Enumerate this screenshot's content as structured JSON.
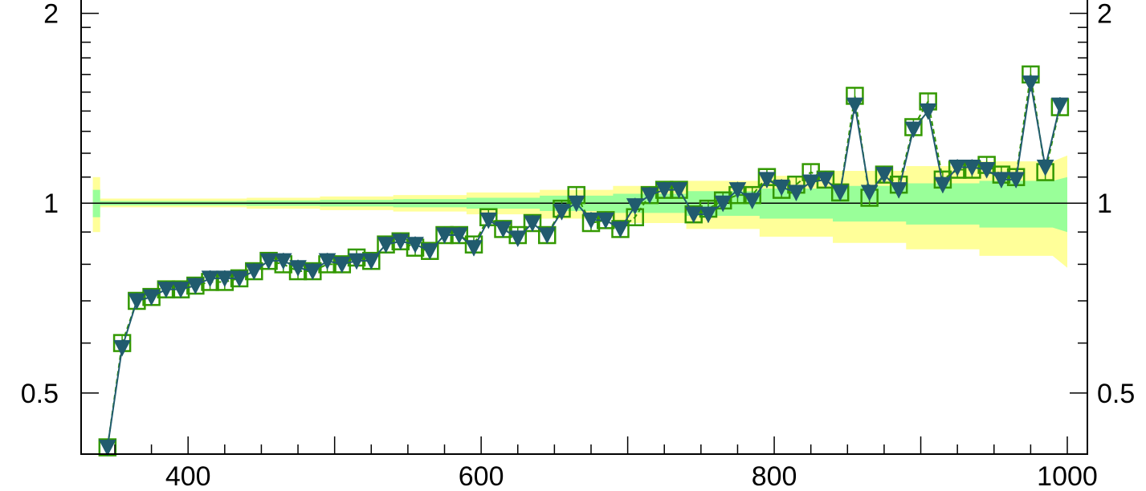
{
  "chart_data": {
    "type": "line",
    "title": "",
    "xlabel": "",
    "ylabel": "",
    "log_y": true,
    "grid": false,
    "legend": "none",
    "xlim": [
      327,
      1000
    ],
    "ylim": [
      0.4,
      2.1
    ],
    "x_ticks": [
      {
        "value": 400,
        "label": "400"
      },
      {
        "value": 600,
        "label": "600"
      },
      {
        "value": 800,
        "label": "800"
      },
      {
        "value": 1000,
        "label": "1000"
      }
    ],
    "y_ticks": [
      {
        "value": 0.5,
        "label": "0.5"
      },
      {
        "value": 1,
        "label": "1"
      },
      {
        "value": 2,
        "label": "2"
      }
    ],
    "reference_line": 1,
    "colors": {
      "band_outer": "#ffff99",
      "band_inner": "#99ff99",
      "square_series": "#339900",
      "triangle_series": "#215b6e",
      "reference": "#000000"
    },
    "band_x_edges": [
      345,
      350,
      400,
      450,
      500,
      550,
      600,
      650,
      700,
      750,
      800,
      850,
      900,
      950,
      1000
    ],
    "band_outer": {
      "lower": [
        0.9,
        0.985,
        0.985,
        0.98,
        0.975,
        0.97,
        0.96,
        0.945,
        0.93,
        0.91,
        0.885,
        0.865,
        0.845,
        0.825,
        0.79
      ],
      "upper": [
        1.1,
        1.017,
        1.017,
        1.02,
        1.025,
        1.03,
        1.04,
        1.05,
        1.065,
        1.085,
        1.105,
        1.125,
        1.145,
        1.165,
        1.19
      ]
    },
    "band_inner": {
      "lower": [
        0.95,
        0.992,
        0.992,
        0.99,
        0.988,
        0.985,
        0.98,
        0.972,
        0.965,
        0.955,
        0.945,
        0.935,
        0.925,
        0.915,
        0.9
      ],
      "upper": [
        1.05,
        1.008,
        1.008,
        1.01,
        1.012,
        1.015,
        1.02,
        1.028,
        1.035,
        1.045,
        1.055,
        1.065,
        1.075,
        1.085,
        1.1
      ]
    },
    "series": [
      {
        "marker": "open-square",
        "x": [
          345,
          355,
          365,
          375,
          385,
          395,
          405,
          415,
          425,
          435,
          445,
          455,
          465,
          475,
          485,
          495,
          505,
          515,
          525,
          535,
          545,
          555,
          565,
          575,
          585,
          595,
          605,
          615,
          625,
          635,
          645,
          655,
          665,
          675,
          685,
          695,
          705,
          715,
          725,
          735,
          745,
          755,
          765,
          775,
          785,
          795,
          805,
          815,
          825,
          835,
          845,
          855,
          865,
          875,
          885,
          895,
          905,
          915,
          925,
          935,
          945,
          955,
          965,
          975,
          985,
          995
        ],
        "y": [
          0.41,
          0.6,
          0.7,
          0.71,
          0.73,
          0.73,
          0.74,
          0.75,
          0.75,
          0.76,
          0.78,
          0.81,
          0.8,
          0.78,
          0.78,
          0.8,
          0.8,
          0.82,
          0.81,
          0.86,
          0.87,
          0.85,
          0.84,
          0.89,
          0.89,
          0.86,
          0.95,
          0.91,
          0.89,
          0.93,
          0.89,
          0.98,
          1.03,
          0.93,
          0.94,
          0.91,
          0.95,
          1.03,
          1.05,
          1.05,
          0.96,
          0.98,
          1.01,
          1.03,
          1.03,
          1.1,
          1.05,
          1.07,
          1.12,
          1.09,
          1.04,
          1.48,
          1.02,
          1.11,
          1.07,
          1.32,
          1.45,
          1.09,
          1.13,
          1.13,
          1.15,
          1.11,
          1.1,
          1.6,
          1.12,
          1.42
        ]
      },
      {
        "marker": "filled-triangle-down",
        "x": [
          345,
          355,
          365,
          375,
          385,
          395,
          405,
          415,
          425,
          435,
          445,
          455,
          465,
          475,
          485,
          495,
          505,
          515,
          525,
          535,
          545,
          555,
          565,
          575,
          585,
          595,
          605,
          615,
          625,
          635,
          645,
          655,
          665,
          675,
          685,
          695,
          705,
          715,
          725,
          735,
          745,
          755,
          765,
          775,
          785,
          795,
          805,
          815,
          825,
          835,
          845,
          855,
          865,
          875,
          885,
          895,
          905,
          915,
          925,
          935,
          945,
          955,
          965,
          975,
          985,
          995
        ],
        "y": [
          0.41,
          0.59,
          0.7,
          0.71,
          0.73,
          0.73,
          0.74,
          0.76,
          0.76,
          0.76,
          0.78,
          0.81,
          0.81,
          0.79,
          0.78,
          0.81,
          0.8,
          0.81,
          0.81,
          0.86,
          0.87,
          0.86,
          0.84,
          0.89,
          0.89,
          0.85,
          0.94,
          0.91,
          0.88,
          0.93,
          0.89,
          0.97,
          1.0,
          0.94,
          0.94,
          0.91,
          0.99,
          1.03,
          1.05,
          1.05,
          0.96,
          0.96,
          1.0,
          1.05,
          1.01,
          1.09,
          1.06,
          1.04,
          1.08,
          1.09,
          1.04,
          1.43,
          1.04,
          1.11,
          1.05,
          1.31,
          1.4,
          1.07,
          1.14,
          1.14,
          1.13,
          1.09,
          1.09,
          1.55,
          1.14,
          1.43
        ]
      }
    ]
  }
}
